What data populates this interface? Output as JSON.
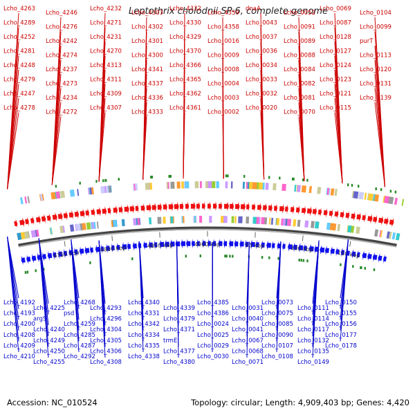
{
  "title": "Leptothrix cholodnii SP-6, complete genome",
  "accession": "Accession: NC_010524",
  "topology": "Topology: circular; Length: 4,909,403 bp; Genes: 4,420",
  "colors": {
    "plus_label": "#cc0000",
    "minus_label": "#0000cc",
    "plus_arrow": "#ee1111",
    "minus_arrow": "#1111ee",
    "backbone": "#555555",
    "tick_marker": "#2a8a2a"
  },
  "kbp_ticks": [
    "4750 kbp",
    "4800 kbp",
    "4850 kbp",
    "4900 kbp",
    "50 kbp",
    "100 kbp",
    "150 kbp"
  ],
  "plus_labels": [
    "Lcho_4263",
    "Lcho_4289",
    "Lcho_4252",
    "Lcho_4281",
    "Lcho_4248",
    "Lcho_4279",
    "Lcho_4247",
    "Lcho_4278",
    "Lcho_4246",
    "Lcho_4276",
    "Lcho_4242",
    "Lcho_4274",
    "Lcho_4237",
    "Lcho_4273",
    "Lcho_4234",
    "Lcho_4272",
    "Lcho_4232",
    "Lcho_4271",
    "Lcho_4231",
    "Lcho_4270",
    "Lcho_4313",
    "Lcho_4311",
    "Lcho_4309",
    "Lcho_4307",
    "Lcho_4303",
    "Lcho_4302",
    "Lcho_4301",
    "Lcho_4300",
    "Lcho_4341",
    "Lcho_4337",
    "Lcho_4336",
    "Lcho_4333",
    "Lcho_4332",
    "Lcho_4330",
    "Lcho_4329",
    "Lcho_4370",
    "Lcho_4366",
    "Lcho_4365",
    "Lcho_4362",
    "Lcho_4361",
    "Lcho_4359",
    "Lcho_4358",
    "Lcho_0016",
    "Lcho_0009",
    "Lcho_0008",
    "Lcho_0004",
    "Lcho_0003",
    "Lcho_0002",
    "dnaA",
    "Lcho_0043",
    "Lcho_0037",
    "Lcho_0036",
    "Lcho_0034",
    "Lcho_0033",
    "Lcho_0032",
    "Lcho_0020",
    "Lcho_0052",
    "Lcho_0091",
    "Lcho_0089",
    "Lcho_0088",
    "Lcho_0084",
    "Lcho_0082",
    "Lcho_0081",
    "Lcho_0070",
    "Lcho_0069",
    "Lcho_0087",
    "Lcho_0128",
    "Lcho_0127",
    "Lcho_0124",
    "Lcho_0123",
    "Lcho_0121",
    "Lcho_0115",
    "Lcho_0104",
    "Lcho_0099",
    "purT",
    "Lcho_0113",
    "Lcho_0120",
    "Lcho_0131",
    "Lcho_0139"
  ],
  "minus_labels": [
    "Lcho_4192",
    "Lcho_4193",
    "Lcho_4200",
    "Lcho_4208",
    "Lcho_4209",
    "Lcho_4210",
    "Lcho_4225",
    "argS",
    "Lcho_4240",
    "Lcho_4249",
    "Lcho_4250",
    "Lcho_4255",
    "Lcho_4268",
    "psd",
    "Lcho_4259",
    "Lcho_4285",
    "Lcho_4287",
    "Lcho_4292",
    "Lcho_4293",
    "Lcho_4296",
    "Lcho_4304",
    "Lcho_4305",
    "Lcho_4306",
    "Lcho_4308",
    "Lcho_4340",
    "Lcho_4331",
    "Lcho_4342",
    "Lcho_4334",
    "Lcho_4335",
    "Lcho_4338",
    "Lcho_4339",
    "Lcho_4379",
    "Lcho_4371",
    "trmE",
    "Lcho_4377",
    "Lcho_4380",
    "Lcho_4385",
    "Lcho_4386",
    "Lcho_0024",
    "Lcho_0025",
    "Lcho_0029",
    "Lcho_0030",
    "Lcho_0031",
    "Lcho_0040",
    "Lcho_0041",
    "Lcho_0067",
    "Lcho_0068",
    "Lcho_0071",
    "Lcho_0073",
    "Lcho_0075",
    "Lcho_0085",
    "Lcho_0090",
    "Lcho_0107",
    "Lcho_0108",
    "Lcho_0111",
    "Lcho_0114",
    "Lcho_0117",
    "Lcho_0132",
    "Lcho_0135",
    "Lcho_0149",
    "Lcho_0150",
    "Lcho_0155",
    "Lcho_0156",
    "Lcho_0177",
    "Lcho_0178"
  ]
}
